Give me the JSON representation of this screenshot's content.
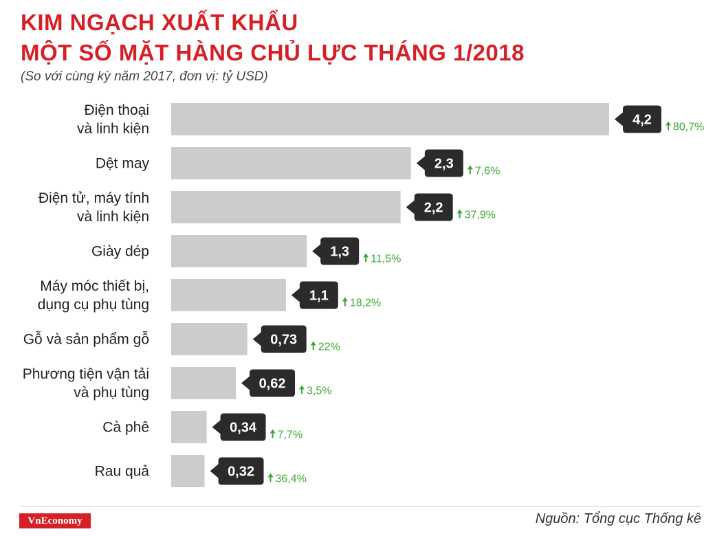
{
  "header": {
    "title_line1": "KIM NGẠCH XUẤT KHẨU",
    "title_line2": "MỘT SỐ MẶT HÀNG CHỦ LỰC THÁNG 1/2018",
    "subtitle": "(So với cùng kỳ năm 2017, đơn vị: tỷ USD)"
  },
  "footer": {
    "logo": "VnEconomy",
    "source": "Nguồn: Tổng cục Thống kê"
  },
  "colors": {
    "title": "#d71f26",
    "bar": "#cccccc",
    "label_box": "#2b2b2b",
    "growth": "#3aaa35"
  },
  "chart_data": {
    "type": "bar",
    "orientation": "horizontal",
    "categories": [
      [
        "Điện thoại",
        "và linh kiện"
      ],
      [
        "Dệt may"
      ],
      [
        "Điện tử, máy tính",
        "và linh kiện"
      ],
      [
        "Giày dép"
      ],
      [
        "Máy móc thiết bị,",
        "dụng cụ phụ tùng"
      ],
      [
        "Gỗ và sản phẩm gỗ"
      ],
      [
        "Phương tiện vận tải",
        "và phụ tùng"
      ],
      [
        "Cà phê"
      ],
      [
        "Rau quả"
      ]
    ],
    "values": [
      4.2,
      2.3,
      2.2,
      1.3,
      1.1,
      0.73,
      0.62,
      0.34,
      0.32
    ],
    "value_labels": [
      "4,2",
      "2,3",
      "2,2",
      "1,3",
      "1,1",
      "0,73",
      "0,62",
      "0,34",
      "0,32"
    ],
    "growth_labels": [
      "80,7%",
      "7,6%",
      "37,9%",
      "11,5%",
      "18,2%",
      "22%",
      "3,5%",
      "7,7%",
      "36,4%"
    ],
    "growth_direction": "up",
    "xlim": [
      0,
      4.2
    ],
    "grid": false,
    "legend": "none"
  }
}
